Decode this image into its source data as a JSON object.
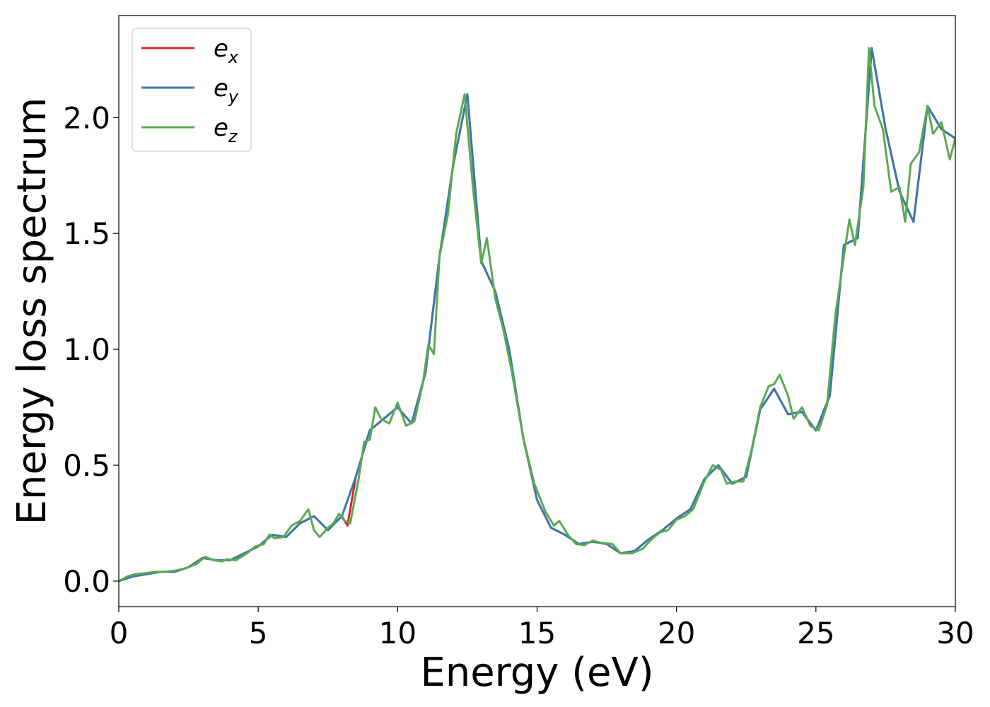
{
  "chart_data": {
    "type": "line",
    "title": "",
    "xlabel": "Energy (eV)",
    "ylabel": "Energy loss spectrum",
    "xlim": [
      0,
      30
    ],
    "ylim": [
      -0.11,
      2.44
    ],
    "xticks": [
      0,
      5,
      10,
      15,
      20,
      25,
      30
    ],
    "xtick_labels": [
      "0",
      "5",
      "10",
      "15",
      "20",
      "25",
      "30"
    ],
    "yticks": [
      0.0,
      0.5,
      1.0,
      1.5,
      2.0
    ],
    "ytick_labels": [
      "0.0",
      "0.5",
      "1.0",
      "1.5",
      "2.0"
    ],
    "grid": false,
    "legend": "top-left",
    "colors": {
      "e_x": "#d62728",
      "e_y": "#3a78b0",
      "e_z": "#5aaa50"
    },
    "series": [
      {
        "name": "e_x",
        "legend_base": "e",
        "legend_sub": "x",
        "color": "#d62728",
        "x": [
          0,
          0.5,
          1,
          1.5,
          2,
          2.5,
          3,
          3.5,
          4,
          4.5,
          5,
          5.5,
          6,
          6.5,
          7,
          7.5,
          8,
          8.2,
          8.5,
          9,
          9.5,
          10,
          10.5,
          11,
          11.5,
          12,
          12.5,
          13,
          13.5,
          14,
          14.5,
          15,
          15.5,
          16,
          16.5,
          17,
          17.5,
          18,
          18.5,
          19,
          19.5,
          20,
          20.5,
          21,
          21.5,
          22,
          22.5,
          23,
          23.5,
          24,
          24.5,
          25,
          25.5,
          26,
          26.5,
          27,
          27.5,
          28,
          28.5,
          29,
          29.5,
          30
        ],
        "y": [
          0.0,
          0.02,
          0.03,
          0.04,
          0.04,
          0.06,
          0.1,
          0.09,
          0.09,
          0.12,
          0.15,
          0.2,
          0.19,
          0.25,
          0.28,
          0.22,
          0.28,
          0.24,
          0.45,
          0.65,
          0.7,
          0.75,
          0.68,
          0.9,
          1.4,
          1.8,
          2.1,
          1.38,
          1.25,
          1.0,
          0.62,
          0.35,
          0.23,
          0.2,
          0.16,
          0.17,
          0.16,
          0.12,
          0.13,
          0.18,
          0.22,
          0.27,
          0.31,
          0.44,
          0.5,
          0.42,
          0.45,
          0.74,
          0.83,
          0.72,
          0.73,
          0.65,
          0.8,
          1.45,
          1.48,
          2.3,
          1.95,
          1.68,
          1.55,
          2.05,
          1.95,
          1.91
        ]
      },
      {
        "name": "e_y",
        "legend_base": "e",
        "legend_sub": "y",
        "color": "#3a78b0",
        "x": [
          0,
          0.5,
          1,
          1.5,
          2,
          2.5,
          3,
          3.5,
          4,
          4.5,
          5,
          5.5,
          6,
          6.5,
          7,
          7.5,
          8,
          8.5,
          9,
          9.5,
          10,
          10.5,
          11,
          11.5,
          12,
          12.5,
          13,
          13.5,
          14,
          14.5,
          15,
          15.5,
          16,
          16.5,
          17,
          17.5,
          18,
          18.5,
          19,
          19.5,
          20,
          20.5,
          21,
          21.5,
          22,
          22.5,
          23,
          23.5,
          24,
          24.5,
          25,
          25.5,
          26,
          26.5,
          27,
          27.5,
          28,
          28.5,
          29,
          29.5,
          30
        ],
        "y": [
          0.0,
          0.02,
          0.03,
          0.04,
          0.04,
          0.06,
          0.1,
          0.09,
          0.09,
          0.12,
          0.15,
          0.2,
          0.19,
          0.25,
          0.28,
          0.22,
          0.28,
          0.45,
          0.65,
          0.7,
          0.75,
          0.68,
          0.9,
          1.4,
          1.8,
          2.1,
          1.38,
          1.25,
          1.0,
          0.62,
          0.35,
          0.23,
          0.2,
          0.16,
          0.17,
          0.16,
          0.12,
          0.13,
          0.18,
          0.22,
          0.27,
          0.31,
          0.44,
          0.5,
          0.42,
          0.45,
          0.74,
          0.83,
          0.72,
          0.73,
          0.65,
          0.8,
          1.45,
          1.48,
          2.3,
          1.95,
          1.68,
          1.55,
          2.05,
          1.95,
          1.91
        ]
      },
      {
        "name": "e_z",
        "legend_base": "e",
        "legend_sub": "z",
        "color": "#5aaa50",
        "x": [
          0,
          0.3,
          0.6,
          1,
          1.3,
          1.6,
          2,
          2.4,
          2.8,
          3.1,
          3.4,
          3.7,
          3.9,
          4.2,
          4.6,
          4.9,
          5.2,
          5.4,
          5.6,
          5.9,
          6.2,
          6.5,
          6.8,
          7,
          7.2,
          7.5,
          7.7,
          7.9,
          8.1,
          8.3,
          8.6,
          8.8,
          9,
          9.2,
          9.4,
          9.7,
          10,
          10.3,
          10.6,
          10.9,
          11.1,
          11.3,
          11.5,
          11.8,
          12.1,
          12.4,
          12.7,
          13,
          13.2,
          13.5,
          13.8,
          14.1,
          14.5,
          14.9,
          15.3,
          15.6,
          15.8,
          16.1,
          16.4,
          16.7,
          17,
          17.3,
          17.7,
          18,
          18.4,
          18.8,
          19.1,
          19.4,
          19.7,
          20,
          20.3,
          20.6,
          21,
          21.3,
          21.6,
          21.8,
          22.1,
          22.4,
          22.7,
          23,
          23.3,
          23.5,
          23.7,
          24,
          24.2,
          24.5,
          24.8,
          25.1,
          25.4,
          25.7,
          26,
          26.2,
          26.4,
          26.7,
          26.9,
          27.1,
          27.4,
          27.7,
          28,
          28.2,
          28.4,
          28.7,
          29,
          29.2,
          29.5,
          29.8,
          30
        ],
        "y": [
          0.0,
          0.02,
          0.03,
          0.035,
          0.04,
          0.04,
          0.045,
          0.055,
          0.075,
          0.105,
          0.09,
          0.085,
          0.095,
          0.09,
          0.12,
          0.15,
          0.16,
          0.2,
          0.185,
          0.19,
          0.24,
          0.26,
          0.31,
          0.22,
          0.19,
          0.23,
          0.25,
          0.29,
          0.26,
          0.25,
          0.44,
          0.6,
          0.61,
          0.75,
          0.7,
          0.68,
          0.77,
          0.67,
          0.69,
          0.85,
          1.02,
          0.98,
          1.4,
          1.58,
          1.93,
          2.1,
          1.7,
          1.37,
          1.48,
          1.22,
          1.08,
          0.9,
          0.62,
          0.42,
          0.3,
          0.24,
          0.26,
          0.2,
          0.16,
          0.155,
          0.175,
          0.165,
          0.16,
          0.12,
          0.12,
          0.14,
          0.18,
          0.21,
          0.22,
          0.265,
          0.28,
          0.31,
          0.43,
          0.5,
          0.48,
          0.42,
          0.43,
          0.43,
          0.57,
          0.75,
          0.84,
          0.85,
          0.89,
          0.8,
          0.7,
          0.75,
          0.67,
          0.65,
          0.76,
          1.15,
          1.4,
          1.56,
          1.45,
          1.7,
          2.3,
          2.05,
          1.95,
          1.68,
          1.7,
          1.55,
          1.8,
          1.85,
          2.05,
          1.93,
          1.98,
          1.82,
          1.91
        ]
      }
    ]
  }
}
